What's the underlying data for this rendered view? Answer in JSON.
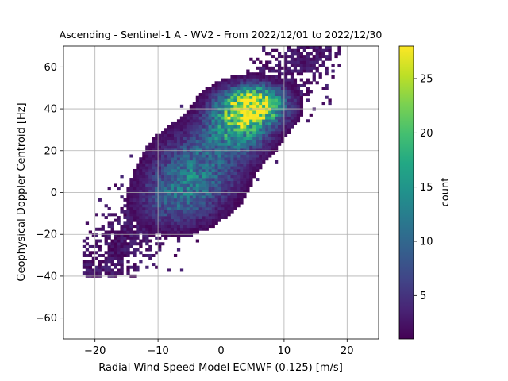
{
  "chart_data": {
    "type": "heatmap",
    "title": "Ascending - Sentinel-1 A - WV2 - From 2022/12/01 to 2022/12/30",
    "xlabel": "Radial Wind Speed Model ECMWF (0.125) [m/s]",
    "ylabel": "Geophysical Doppler Centroid [Hz]",
    "xlim": [
      -25,
      25
    ],
    "ylim": [
      -70,
      70
    ],
    "x_ticks": [
      -20,
      -10,
      0,
      10,
      20
    ],
    "y_ticks": [
      -60,
      -40,
      -20,
      0,
      20,
      40,
      60
    ],
    "x_tick_labels": [
      "−20",
      "−10",
      "0",
      "10",
      "20"
    ],
    "y_tick_labels": [
      "−60",
      "−40",
      "−20",
      "0",
      "20",
      "40",
      "60"
    ],
    "grid": true,
    "colormap": "viridis",
    "colorbar": {
      "label": "count",
      "range": [
        1,
        28
      ],
      "ticks": [
        5,
        10,
        15,
        20,
        25
      ],
      "tick_labels": [
        "5",
        "10",
        "15",
        "20",
        "25"
      ]
    },
    "bin_size": {
      "x": 0.5,
      "y": 1.4
    },
    "density_model": {
      "description": "approximate 2D histogram of a positively correlated cloud",
      "components": [
        {
          "cx": 5.5,
          "cy": 42,
          "sx": 3.2,
          "sy": 6,
          "peak": 26
        },
        {
          "cx": 2.5,
          "cy": 32,
          "sx": 3.5,
          "sy": 9,
          "peak": 16
        },
        {
          "cx": -4,
          "cy": 10,
          "sx": 4.5,
          "sy": 12,
          "peak": 11
        },
        {
          "cx": -8,
          "cy": -5,
          "sx": 4,
          "sy": 9,
          "peak": 6
        }
      ],
      "main_axis": {
        "x0": -14,
        "y0": -20,
        "x1": 12,
        "y1": 62,
        "half_width_hz": 22
      }
    }
  }
}
